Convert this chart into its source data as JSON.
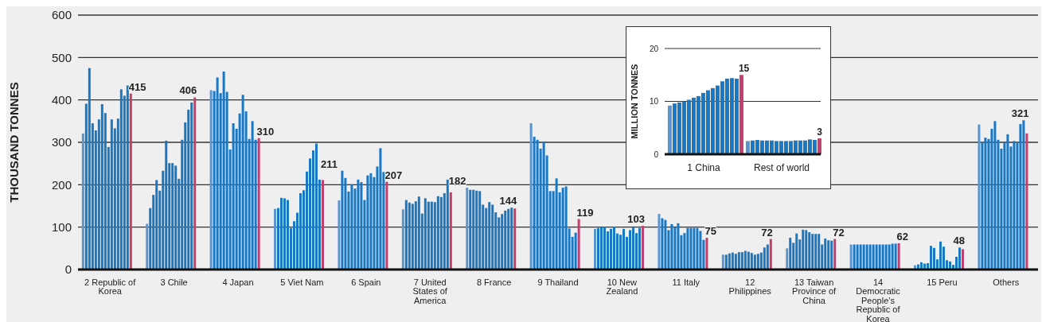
{
  "chart_data": [
    {
      "type": "bar",
      "ylabel": "THOUSAND TONNES",
      "categories": [
        "2 Republic of Korea",
        "3 Chile",
        "4 Japan",
        "5 Viet Nam",
        "6 Spain",
        "7 United States of America",
        "8 France",
        "9 Thailand",
        "10 New Zealand",
        "11 Italy",
        "12 Philippines",
        "13 Taiwan Province of China",
        "14 Democratic People’s Republic of Korea",
        "15 Peru",
        "Others"
      ],
      "ylim": [
        0,
        600
      ],
      "yticks": [
        0,
        100,
        200,
        300,
        400,
        500,
        600
      ],
      "grid": "y",
      "series": [
        {
          "color": "#5b95d0",
          "values": [
            321,
            108,
            423,
            143,
            163,
            142,
            193,
            345,
            96,
            131,
            35,
            50,
            59,
            10,
            342
          ]
        },
        {
          "color": "#1a78c2",
          "values": [
            391,
            145,
            421,
            145,
            233,
            164,
            188,
            313,
            98,
            121,
            35,
            75,
            59,
            12,
            300
          ]
        },
        {
          "color": "#1a78c2",
          "values": [
            475,
            176,
            453,
            169,
            216,
            158,
            188,
            306,
            100,
            117,
            38,
            63,
            59,
            17,
            311
          ]
        },
        {
          "color": "#1a78c2",
          "values": [
            345,
            211,
            416,
            168,
            184,
            155,
            186,
            285,
            101,
            93,
            40,
            85,
            59,
            14,
            308
          ]
        },
        {
          "color": "#1a78c2",
          "values": [
            328,
            186,
            467,
            164,
            201,
            161,
            185,
            301,
            90,
            107,
            37,
            71,
            59,
            15,
            332
          ]
        },
        {
          "color": "#1a78c2",
          "values": [
            354,
            233,
            419,
            98,
            191,
            172,
            153,
            269,
            96,
            99,
            41,
            94,
            59,
            56,
            350
          ]
        },
        {
          "color": "#1a78c2",
          "values": [
            390,
            304,
            283,
            114,
            212,
            132,
            145,
            185,
            101,
            109,
            41,
            93,
            59,
            51,
            306
          ]
        },
        {
          "color": "#1a78c2",
          "values": [
            369,
            251,
            345,
            134,
            206,
            168,
            159,
            185,
            85,
            81,
            44,
            88,
            59,
            24,
            285
          ]
        },
        {
          "color": "#1a78c2",
          "values": [
            289,
            251,
            332,
            180,
            164,
            160,
            153,
            215,
            82,
            86,
            42,
            84,
            59,
            66,
            300
          ]
        },
        {
          "color": "#1a78c2",
          "values": [
            354,
            245,
            368,
            187,
            222,
            160,
            135,
            182,
            96,
            98,
            39,
            84,
            59,
            54,
            319
          ]
        },
        {
          "color": "#1a78c2",
          "values": [
            333,
            214,
            412,
            231,
            227,
            159,
            123,
            193,
            77,
            98,
            35,
            84,
            59,
            22,
            290
          ]
        },
        {
          "color": "#1a78c2",
          "values": [
            356,
            306,
            373,
            262,
            218,
            173,
            131,
            196,
            93,
            98,
            37,
            59,
            59,
            19,
            303
          ]
        },
        {
          "color": "#1a78c2",
          "values": [
            425,
            347,
            308,
            281,
            243,
            171,
            139,
            97,
            99,
            98,
            40,
            73,
            59,
            11,
            299
          ]
        },
        {
          "color": "#1a78c2",
          "values": [
            410,
            377,
            350,
            297,
            286,
            180,
            143,
            77,
            86,
            91,
            52,
            69,
            61,
            30,
            343
          ]
        },
        {
          "color": "#1a78c2",
          "values": [
            434,
            394,
            306,
            212,
            230,
            212,
            146,
            87,
            98,
            70,
            59,
            68,
            61,
            52,
            352
          ]
        },
        {
          "color": "#c0406f",
          "values": [
            415,
            406,
            310,
            211,
            207,
            182,
            144,
            119,
            103,
            75,
            72,
            72,
            62,
            48,
            321
          ],
          "value_labels": [
            "415",
            "406",
            "310",
            "211",
            "207",
            "182",
            "144",
            "119",
            "103",
            "75",
            "72",
            "72",
            "62",
            "48",
            "321"
          ]
        }
      ]
    },
    {
      "type": "bar",
      "ylabel": "MILLION TONNES",
      "categories": [
        "1 China",
        "Rest of world"
      ],
      "ylim": [
        0,
        20
      ],
      "yticks": [
        0,
        10,
        20
      ],
      "grid": "y",
      "series": [
        {
          "color": "#5b95d0",
          "values": [
            9.2,
            2.5
          ]
        },
        {
          "color": "#1a78c2",
          "values": [
            9.6,
            2.6
          ]
        },
        {
          "color": "#1a78c2",
          "values": [
            9.8,
            2.7
          ]
        },
        {
          "color": "#1a78c2",
          "values": [
            10.0,
            2.6
          ]
        },
        {
          "color": "#1a78c2",
          "values": [
            10.3,
            2.6
          ]
        },
        {
          "color": "#1a78c2",
          "values": [
            10.7,
            2.6
          ]
        },
        {
          "color": "#1a78c2",
          "values": [
            11.0,
            2.5
          ]
        },
        {
          "color": "#1a78c2",
          "values": [
            11.6,
            2.5
          ]
        },
        {
          "color": "#1a78c2",
          "values": [
            12.1,
            2.5
          ]
        },
        {
          "color": "#1a78c2",
          "values": [
            12.5,
            2.5
          ]
        },
        {
          "color": "#1a78c2",
          "values": [
            13.0,
            2.6
          ]
        },
        {
          "color": "#1a78c2",
          "values": [
            13.8,
            2.6
          ]
        },
        {
          "color": "#1a78c2",
          "values": [
            14.3,
            2.6
          ]
        },
        {
          "color": "#1a78c2",
          "values": [
            14.4,
            2.8
          ]
        },
        {
          "color": "#1a78c2",
          "values": [
            14.3,
            2.7
          ]
        },
        {
          "color": "#c0406f",
          "values": [
            15,
            3
          ],
          "value_labels": [
            "15",
            "3"
          ]
        }
      ]
    }
  ]
}
